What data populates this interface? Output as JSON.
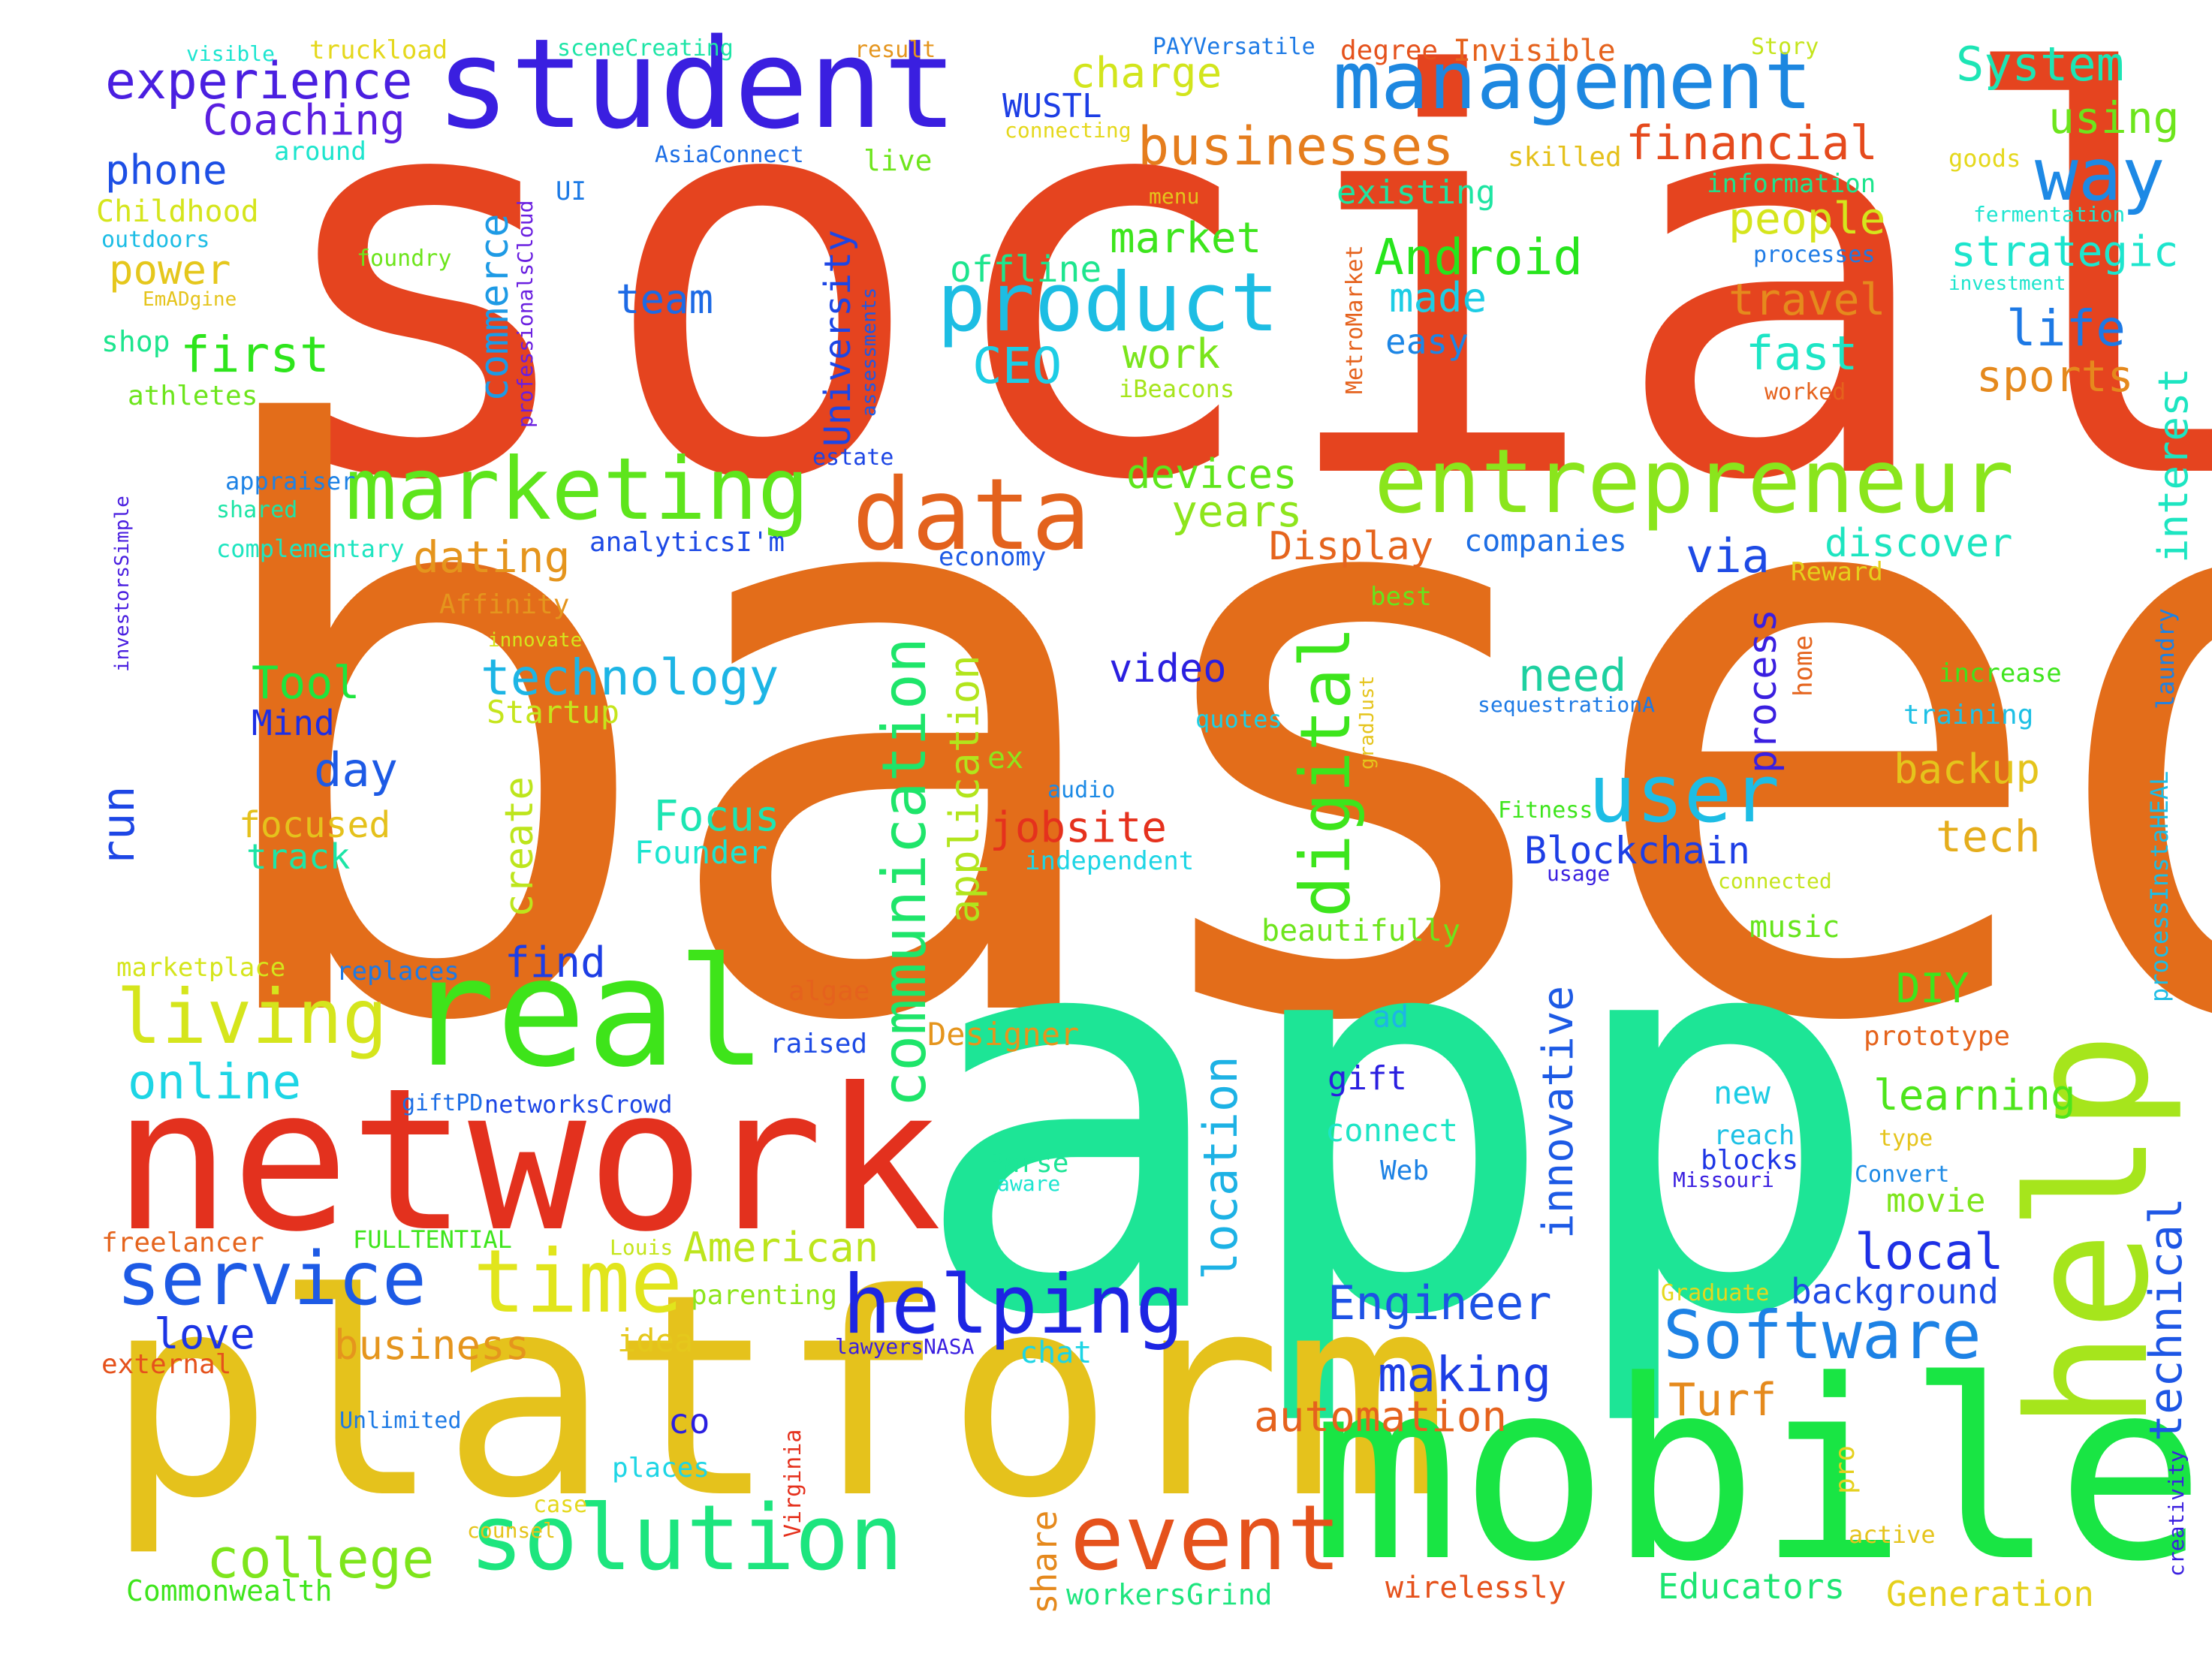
{
  "word_cloud": {
    "background": "#ffffff",
    "words": [
      {
        "text": "social",
        "color": "#e5441f"
      },
      {
        "text": "based",
        "color": "#e36d1a"
      },
      {
        "text": "app",
        "color": "#1de596"
      },
      {
        "text": "platform",
        "color": "#e5c21c"
      },
      {
        "text": "mobile",
        "color": "#19e544"
      },
      {
        "text": "help",
        "color": "#a6e51c"
      },
      {
        "text": "network",
        "color": "#e3311e"
      },
      {
        "text": "real",
        "color": "#3ee41a"
      },
      {
        "text": "student",
        "color": "#3a1fe0"
      },
      {
        "text": "management",
        "color": "#1d87e0"
      },
      {
        "text": "marketing",
        "color": "#5ee51c"
      },
      {
        "text": "entrepreneur",
        "color": "#8ae51c"
      },
      {
        "text": "data",
        "color": "#e3621d"
      },
      {
        "text": "product",
        "color": "#1dbde3"
      },
      {
        "text": "solution",
        "color": "#1de57e"
      },
      {
        "text": "event",
        "color": "#e5521c"
      },
      {
        "text": "time",
        "color": "#e1e51c"
      },
      {
        "text": "service",
        "color": "#1d5ae5"
      },
      {
        "text": "living",
        "color": "#d5e51c"
      },
      {
        "text": "helping",
        "color": "#1d25e3"
      },
      {
        "text": "Software",
        "color": "#1d82e5"
      },
      {
        "text": "digital",
        "color": "#3de51c"
      },
      {
        "text": "user",
        "color": "#1dbde5"
      },
      {
        "text": "communication",
        "color": "#1ee56a"
      },
      {
        "text": "businesses",
        "color": "#e57d1d"
      },
      {
        "text": "way",
        "color": "#1d89e5"
      },
      {
        "text": "experience",
        "color": "#4a1fe0"
      },
      {
        "text": "financial",
        "color": "#e54a1d"
      },
      {
        "text": "System",
        "color": "#1de5b5"
      },
      {
        "text": "college",
        "color": "#7ee51c"
      },
      {
        "text": "technology",
        "color": "#1db5e5"
      },
      {
        "text": "location",
        "color": "#1db2e5"
      },
      {
        "text": "Engineer",
        "color": "#1d52e5"
      },
      {
        "text": "making",
        "color": "#1d3ee5"
      },
      {
        "text": "automation",
        "color": "#e5621d"
      },
      {
        "text": "technical",
        "color": "#1d56e5"
      },
      {
        "text": "local",
        "color": "#1d30e5"
      },
      {
        "text": "learning",
        "color": "#4ee51c"
      },
      {
        "text": "charge",
        "color": "#d2e51c"
      },
      {
        "text": "Coaching",
        "color": "#5a1fe0"
      },
      {
        "text": "phone",
        "color": "#1d4fe5"
      },
      {
        "text": "power",
        "color": "#e5c71c"
      },
      {
        "text": "first",
        "color": "#2ee51c"
      },
      {
        "text": "commerce",
        "color": "#1d9ae5"
      },
      {
        "text": "team",
        "color": "#1d6ae5"
      },
      {
        "text": "CEO",
        "color": "#1dcde5"
      },
      {
        "text": "work",
        "color": "#7ae51c"
      },
      {
        "text": "market",
        "color": "#3de51c"
      },
      {
        "text": "offline",
        "color": "#1de58e"
      },
      {
        "text": "Android",
        "color": "#27e51c"
      },
      {
        "text": "made",
        "color": "#1dcde5"
      },
      {
        "text": "easy",
        "color": "#1d86e5"
      },
      {
        "text": "existing",
        "color": "#1de5a2"
      },
      {
        "text": "people",
        "color": "#d5e51c"
      },
      {
        "text": "travel",
        "color": "#e58a1d"
      },
      {
        "text": "fast",
        "color": "#1de5c5"
      },
      {
        "text": "life",
        "color": "#1d79e5"
      },
      {
        "text": "strategic",
        "color": "#1de5cd"
      },
      {
        "text": "sports",
        "color": "#e5891d"
      },
      {
        "text": "interest",
        "color": "#1de5c1"
      },
      {
        "text": "using",
        "color": "#6de51c"
      },
      {
        "text": "information",
        "color": "#1de58e"
      },
      {
        "text": "devices",
        "color": "#5ee51c"
      },
      {
        "text": "years",
        "color": "#8ee51c"
      },
      {
        "text": "dating",
        "color": "#e5951d"
      },
      {
        "text": "Display",
        "color": "#e5641d"
      },
      {
        "text": "via",
        "color": "#1d4ae5"
      },
      {
        "text": "companies",
        "color": "#1d6ee5"
      },
      {
        "text": "discover",
        "color": "#1de5c0"
      },
      {
        "text": "Tool",
        "color": "#1ee53e"
      },
      {
        "text": "Mind",
        "color": "#1d2ee5"
      },
      {
        "text": "day",
        "color": "#1d5ae5"
      },
      {
        "text": "run",
        "color": "#1d46e5"
      },
      {
        "text": "focused",
        "color": "#e5c11c"
      },
      {
        "text": "track",
        "color": "#1de5a6"
      },
      {
        "text": "Startup",
        "color": "#c5e51c"
      },
      {
        "text": "create",
        "color": "#bde51c"
      },
      {
        "text": "application",
        "color": "#b2e51c"
      },
      {
        "text": "Focus",
        "color": "#1de5b2"
      },
      {
        "text": "Founder",
        "color": "#1de5d0"
      },
      {
        "text": "video",
        "color": "#2a1fe0"
      },
      {
        "text": "jobsite",
        "color": "#e5311d"
      },
      {
        "text": "independent",
        "color": "#1dd5e5"
      },
      {
        "text": "need",
        "color": "#1dd0a0"
      },
      {
        "text": "Blockchain",
        "color": "#1d3ee5"
      },
      {
        "text": "process",
        "color": "#3a1fe0"
      },
      {
        "text": "backup",
        "color": "#e5c41c"
      },
      {
        "text": "tech",
        "color": "#e5ad1c"
      },
      {
        "text": "DIY",
        "color": "#3ee51c"
      },
      {
        "text": "music",
        "color": "#66e51c"
      },
      {
        "text": "find",
        "color": "#1d3ee5"
      },
      {
        "text": "online",
        "color": "#1dd5e5"
      },
      {
        "text": "American",
        "color": "#bde51c"
      },
      {
        "text": "love",
        "color": "#1d35e5"
      },
      {
        "text": "business",
        "color": "#e5951d"
      },
      {
        "text": "idea",
        "color": "#e5c81c"
      },
      {
        "text": "co",
        "color": "#2a1fe0"
      },
      {
        "text": "share",
        "color": "#e5891d"
      },
      {
        "text": "Turf",
        "color": "#e58a1d"
      },
      {
        "text": "innovative",
        "color": "#1d5ae5"
      },
      {
        "text": "movie",
        "color": "#7ee51c"
      },
      {
        "text": "background",
        "color": "#1d4ae5"
      },
      {
        "text": "Educators",
        "color": "#1de572"
      },
      {
        "text": "Generation",
        "color": "#e5d01c"
      },
      {
        "text": "wirelessly",
        "color": "#e5521c"
      },
      {
        "text": "Commonwealth",
        "color": "#3ee51c"
      },
      {
        "text": "workersGrind",
        "color": "#1de57e"
      },
      {
        "text": "new",
        "color": "#1dcde5"
      },
      {
        "text": "reach",
        "color": "#1dc1e5"
      },
      {
        "text": "blocks",
        "color": "#1d35e5"
      },
      {
        "text": "Missouri",
        "color": "#3a1fe0"
      },
      {
        "text": "connect",
        "color": "#1de5c5"
      },
      {
        "text": "Web",
        "color": "#1d82e5"
      },
      {
        "text": "gift",
        "color": "#2a1fe0"
      },
      {
        "text": "ad",
        "color": "#1db5e5"
      },
      {
        "text": "Parse",
        "color": "#1de596"
      },
      {
        "text": "aware",
        "color": "#1de5d0"
      },
      {
        "text": "chat",
        "color": "#1dd5e5"
      },
      {
        "text": "Designer",
        "color": "#e5951d"
      },
      {
        "text": "raised",
        "color": "#1d4ae5"
      },
      {
        "text": "algae",
        "color": "#e5621d"
      },
      {
        "text": "prototype",
        "color": "#e5641d"
      },
      {
        "text": "type",
        "color": "#e5c41c"
      },
      {
        "text": "Convert",
        "color": "#1d8ae5"
      },
      {
        "text": "visible",
        "color": "#1de5d0"
      },
      {
        "text": "truckload",
        "color": "#e5d81c"
      },
      {
        "text": "sceneCreating",
        "color": "#1de5a6"
      },
      {
        "text": "result",
        "color": "#e5951d"
      },
      {
        "text": "PAYVersatile",
        "color": "#1d7ae5"
      },
      {
        "text": "degree",
        "color": "#e5521c"
      },
      {
        "text": "Invisible",
        "color": "#e5621d"
      },
      {
        "text": "Story",
        "color": "#c5e51c"
      },
      {
        "text": "WUSTL",
        "color": "#1d3ee5"
      },
      {
        "text": "connecting",
        "color": "#e5d81c"
      },
      {
        "text": "AsiaConnect",
        "color": "#1d6ee5"
      },
      {
        "text": "live",
        "color": "#6de51c"
      },
      {
        "text": "skilled",
        "color": "#e5c11c"
      },
      {
        "text": "goods",
        "color": "#e5d81c"
      },
      {
        "text": "fermentation",
        "color": "#1de5d0"
      },
      {
        "text": "processes",
        "color": "#1d7ae5"
      },
      {
        "text": "investment",
        "color": "#1de5cd"
      },
      {
        "text": "menu",
        "color": "#e5c41c"
      },
      {
        "text": "UI",
        "color": "#1d7ae5"
      },
      {
        "text": "around",
        "color": "#1de5cd"
      },
      {
        "text": "Childhood",
        "color": "#d5e51c"
      },
      {
        "text": "outdoors",
        "color": "#1dbde5"
      },
      {
        "text": "foundry",
        "color": "#6de51c"
      },
      {
        "text": "EmADgine",
        "color": "#e5c41c"
      },
      {
        "text": "shop",
        "color": "#1de58e"
      },
      {
        "text": "athletes",
        "color": "#6de51c"
      },
      {
        "text": "professionalsCloud",
        "color": "#6a1fe0"
      },
      {
        "text": "assessments",
        "color": "#1d5ae5"
      },
      {
        "text": "University",
        "color": "#1d46e5"
      },
      {
        "text": "estate",
        "color": "#1d46e5"
      },
      {
        "text": "MetroMarket",
        "color": "#e5621d"
      },
      {
        "text": "iBeacons",
        "color": "#a6e51c"
      },
      {
        "text": "worked",
        "color": "#e5621d"
      },
      {
        "text": "appraiser",
        "color": "#1d82e5"
      },
      {
        "text": "shared",
        "color": "#1de5a6"
      },
      {
        "text": "complementary",
        "color": "#1de5c0"
      },
      {
        "text": "investorsSimple",
        "color": "#4a1fe0"
      },
      {
        "text": "analyticsI'm",
        "color": "#1d4ae5"
      },
      {
        "text": "economy",
        "color": "#1d5ae5"
      },
      {
        "text": "Affinity",
        "color": "#e5951d"
      },
      {
        "text": "innovate",
        "color": "#d5e51c"
      },
      {
        "text": "best",
        "color": "#66e51c"
      },
      {
        "text": "Reward",
        "color": "#e5d01c"
      },
      {
        "text": "home",
        "color": "#e5641d"
      },
      {
        "text": "gradJust",
        "color": "#e5c41c"
      },
      {
        "text": "quotes",
        "color": "#1dd0e5"
      },
      {
        "text": "sequestrationA",
        "color": "#1d7ae5"
      },
      {
        "text": "increase",
        "color": "#3ee51c"
      },
      {
        "text": "training",
        "color": "#1dc0e5"
      },
      {
        "text": "laundry",
        "color": "#1d82e5"
      },
      {
        "text": "ex",
        "color": "#8ee51c"
      },
      {
        "text": "audio",
        "color": "#1d8ae5"
      },
      {
        "text": "Fitness",
        "color": "#3ee51c"
      },
      {
        "text": "usage",
        "color": "#3a1fe0"
      },
      {
        "text": "connected",
        "color": "#c5e51c"
      },
      {
        "text": "processInstaHEAL",
        "color": "#1dbde5"
      },
      {
        "text": "beautifully",
        "color": "#6de51c"
      },
      {
        "text": "marketplace",
        "color": "#d5e51c"
      },
      {
        "text": "replaces",
        "color": "#1d7ae5"
      },
      {
        "text": "giftPD",
        "color": "#1d6ee5"
      },
      {
        "text": "networksCrowd",
        "color": "#1d46e5"
      },
      {
        "text": "freelancer",
        "color": "#e5641d"
      },
      {
        "text": "FULLTENTIAL",
        "color": "#3ee51c"
      },
      {
        "text": "Louis",
        "color": "#c5e51c"
      },
      {
        "text": "parenting",
        "color": "#8ee51c"
      },
      {
        "text": "external",
        "color": "#e5521c"
      },
      {
        "text": "lawyersNASA",
        "color": "#3a1fe0"
      },
      {
        "text": "Unlimited",
        "color": "#1d7ae5"
      },
      {
        "text": "places",
        "color": "#1dd5e5"
      },
      {
        "text": "Virginia",
        "color": "#e5311d"
      },
      {
        "text": "case",
        "color": "#e5d81c"
      },
      {
        "text": "counsel",
        "color": "#e5c41c"
      },
      {
        "text": "pro",
        "color": "#e5d01c"
      },
      {
        "text": "active",
        "color": "#e5c41c"
      },
      {
        "text": "Graduate",
        "color": "#e5d81c"
      },
      {
        "text": "creativity",
        "color": "#3a1fe0"
      }
    ]
  }
}
